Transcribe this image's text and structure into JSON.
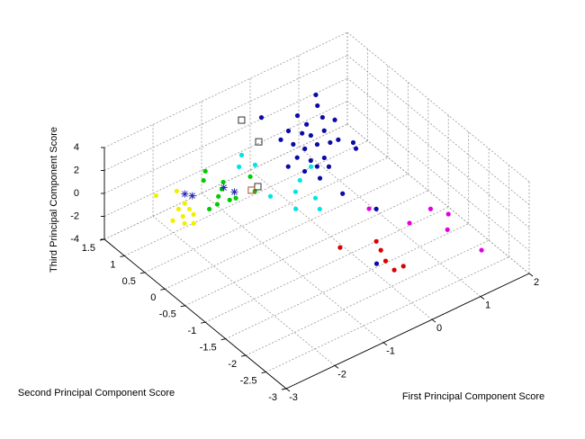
{
  "chart_data": {
    "type": "scatter3d",
    "x_label": "First Principal Component Score",
    "y_label": "Second Principal Component Score",
    "z_label": "Third Principal Component Score",
    "xlim": [
      -3,
      2
    ],
    "ylim": [
      -3,
      1.5
    ],
    "zlim": [
      -4,
      4
    ],
    "xticks": [
      -3,
      -2,
      -1,
      0,
      1,
      2
    ],
    "yticks": [
      -3,
      -2.5,
      -2,
      -1.5,
      -1,
      -0.5,
      0,
      0.5,
      1,
      1.5
    ],
    "zticks": [
      -4,
      -2,
      0,
      2,
      4
    ],
    "grid": true,
    "series": [
      {
        "color": "#0a0aa8",
        "marker": "o",
        "x": [
          0.96,
          0.81,
          -0.11,
          0.39,
          0.37,
          0.69,
          0.81,
          0.03,
          0.17,
          0.25,
          0.5,
          -0.21,
          -0.12,
          -0.04,
          0.19,
          0.39,
          0.54,
          0.69,
          0.63,
          -0.28,
          -0.15,
          0.07,
          -0.54,
          -0.4,
          -0.16,
          -0.01,
          -0.31,
          -0.26,
          0.3,
          -0.2
        ],
        "y": [
          1.03,
          0.81,
          1.09,
          0.8,
          0.55,
          0.54,
          0.38,
          0.59,
          0.42,
          0.3,
          0.27,
          0.49,
          0.29,
          0.1,
          0.07,
          -0.01,
          -0.03,
          -0.22,
          -0.36,
          0.0,
          -0.18,
          -0.25,
          -0.09,
          -0.33,
          -0.35,
          -0.46,
          -0.6,
          -1.1,
          -1.26,
          -1.87
        ],
        "z": [
          2,
          2,
          2,
          2,
          2,
          2,
          2,
          2,
          2,
          2,
          2,
          2,
          2,
          2,
          2,
          2,
          2,
          2,
          2,
          2,
          2,
          2,
          2,
          2,
          2,
          2,
          2,
          2,
          0,
          -2
        ]
      },
      {
        "color": "#00e5e5",
        "marker": "o",
        "x": [
          -0.6,
          -0.82,
          -0.58,
          -0.88,
          -0.48,
          -0.24,
          0.12,
          -0.32,
          -0.44,
          -0.75
        ],
        "y": [
          0.99,
          0.79,
          0.68,
          -0.06,
          -0.2,
          -0.02,
          0.14,
          -0.5,
          -0.75,
          -0.53
        ],
        "z": [
          0,
          0,
          0,
          0,
          0,
          0,
          0,
          0,
          0,
          0
        ]
      },
      {
        "color": "#00cc00",
        "marker": "o",
        "x": [
          -1.33,
          -1.5,
          -1.27,
          -1.4,
          -1.56,
          -1.47,
          -1.7,
          -1.88,
          -0.83,
          -1.0,
          -1.36
        ],
        "y": [
          1.01,
          0.85,
          0.64,
          0.52,
          0.41,
          0.24,
          0.27,
          0.25,
          0.5,
          0.18,
          0.22
        ],
        "z": [
          0,
          0,
          0,
          0,
          0,
          0,
          0,
          0,
          0,
          0,
          0
        ]
      },
      {
        "color": "#f0f000",
        "marker": "o",
        "x": [
          -2.36,
          -2.02,
          -2.11,
          -2.28,
          -2.14,
          -2.34,
          -2.17,
          -2.54,
          -2.43,
          -2.31
        ],
        "y": [
          0.99,
          0.89,
          0.58,
          0.53,
          0.43,
          0.35,
          0.29,
          0.36,
          0.2,
          0.12
        ],
        "z": [
          0,
          0,
          0,
          0,
          0,
          0,
          0,
          0,
          0,
          0
        ]
      },
      {
        "color": "#dd0000",
        "marker": "o",
        "x": [
          -0.42,
          0.15,
          0.07,
          -0.04,
          -0.07,
          0.11
        ],
        "y": [
          -1.23,
          -1.44,
          -1.65,
          -1.9,
          -2.15,
          -2.16
        ],
        "z": [
          -2,
          -2,
          -2,
          -2,
          -2,
          -2
        ]
      },
      {
        "color": "#e000e0",
        "marker": "o",
        "x": [
          0.21,
          0.51,
          1.01,
          1.16,
          0.9,
          1.02
        ],
        "y": [
          -1.19,
          -1.83,
          -1.75,
          -2.01,
          -2.3,
          -3.0
        ],
        "z": [
          0,
          0,
          0,
          0,
          0,
          0
        ]
      },
      {
        "color": "#333333",
        "marker": "s",
        "x": [
          -0.41,
          -0.53,
          -0.89
        ],
        "y": [
          1.22,
          0.65,
          0.24
        ],
        "z": [
          2,
          2,
          0
        ]
      },
      {
        "color": "#a0522d",
        "marker": "s",
        "x": [
          -1.03
        ],
        "y": [
          0.23
        ],
        "z": [
          0
        ]
      },
      {
        "color": "#2a2ab0",
        "marker": "*",
        "x": [
          -1.96,
          -1.89,
          -1.35,
          -1.28
        ],
        "y": [
          0.76,
          0.66,
          0.53,
          0.35
        ],
        "z": [
          0,
          0,
          0,
          0
        ]
      }
    ]
  }
}
